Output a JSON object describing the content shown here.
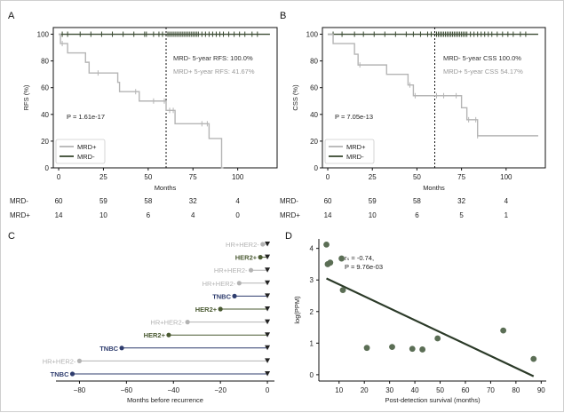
{
  "colors": {
    "mrd_pos": "#b5b5b5",
    "mrd_neg": "#3a4a32",
    "dot": "#5b6e55",
    "line": "#2b3a28",
    "tnbc": "#2f3d6e",
    "her2": "#4a5a32",
    "hr": "#b3b3b3"
  },
  "chart_data": [
    {
      "panel": "A",
      "type": "line",
      "ylabel": "RFS (%)",
      "xlabel": "Months",
      "xticks": [
        0,
        25,
        50,
        75,
        100
      ],
      "yticks": [
        0,
        20,
        40,
        60,
        80,
        100
      ],
      "xlim": [
        -3,
        122
      ],
      "ylim": [
        0,
        105
      ],
      "vline": 60,
      "pvalue": "P = 1.61e-17",
      "annotations": [
        "MRD- 5-year RFS: 100.0%",
        "MRD+ 5-year RFS: 41.67%"
      ],
      "legend": [
        "MRD+",
        "MRD-"
      ],
      "series": [
        {
          "name": "MRD-",
          "steps": [
            [
              0,
              100
            ],
            [
              118,
              100
            ]
          ],
          "censor": [
            2,
            5,
            12,
            18,
            24,
            30,
            36,
            42,
            48,
            49,
            53,
            56,
            58,
            61,
            62,
            63,
            64,
            65,
            66,
            67,
            68,
            69,
            70,
            71,
            72,
            73,
            74,
            75,
            76,
            77,
            78,
            80,
            82,
            84,
            86,
            88,
            90,
            92,
            95,
            98,
            101,
            104,
            108,
            111
          ]
        },
        {
          "name": "MRD+",
          "steps": [
            [
              0,
              100
            ],
            [
              1,
              93
            ],
            [
              5,
              86
            ],
            [
              15,
              79
            ],
            [
              17,
              71
            ],
            [
              33,
              64
            ],
            [
              34,
              57
            ],
            [
              45,
              50
            ],
            [
              60,
              43
            ],
            [
              65,
              33
            ],
            [
              80,
              33
            ],
            [
              84,
              22
            ],
            [
              91,
              22
            ],
            [
              91,
              0
            ],
            [
              92,
              0
            ]
          ],
          "censor": [
            2,
            22,
            43,
            53,
            59,
            62,
            64,
            80,
            83
          ]
        }
      ],
      "risk_table": {
        "xlabels": [
          0,
          25,
          50,
          75,
          100
        ],
        "rows": [
          {
            "name": "MRD-",
            "values": [
              "60",
              "59",
              "58",
              "32",
              "4"
            ]
          },
          {
            "name": "MRD+",
            "values": [
              "14",
              "10",
              "6",
              "4",
              "0"
            ]
          }
        ]
      }
    },
    {
      "panel": "B",
      "type": "line",
      "ylabel": "CSS (%)",
      "xlabel": "Months",
      "xticks": [
        0,
        25,
        50,
        75,
        100
      ],
      "yticks": [
        0,
        20,
        40,
        60,
        80,
        100
      ],
      "xlim": [
        -3,
        122
      ],
      "ylim": [
        0,
        105
      ],
      "vline": 60,
      "pvalue": "P = 7.05e-13",
      "annotations": [
        "MRD- 5-year CSS 100.0%",
        "MRD+ 5-year CSS 54.17%"
      ],
      "legend": [
        "MRD+",
        "MRD-"
      ],
      "series": [
        {
          "name": "MRD-",
          "steps": [
            [
              0,
              100
            ],
            [
              118,
              100
            ]
          ],
          "censor": [
            3,
            8,
            15,
            20,
            26,
            32,
            38,
            44,
            48,
            52,
            56,
            58,
            61,
            62,
            63,
            64,
            65,
            66,
            67,
            68,
            69,
            70,
            71,
            72,
            73,
            74,
            75,
            76,
            77,
            78,
            80,
            82,
            84,
            86,
            88,
            90,
            92,
            95,
            98,
            101,
            104,
            108,
            111
          ]
        },
        {
          "name": "MRD+",
          "steps": [
            [
              0,
              100
            ],
            [
              3,
              93
            ],
            [
              15,
              85
            ],
            [
              17,
              77
            ],
            [
              33,
              70
            ],
            [
              45,
              62
            ],
            [
              48,
              54
            ],
            [
              75,
              45
            ],
            [
              78,
              36
            ],
            [
              84,
              24
            ],
            [
              118,
              24
            ]
          ],
          "censor": [
            18,
            46,
            49,
            61,
            65,
            72,
            79,
            83,
            84
          ]
        }
      ],
      "risk_table": {
        "xlabels": [
          0,
          25,
          50,
          75,
          100
        ],
        "rows": [
          {
            "name": "MRD-",
            "values": [
              "60",
              "59",
              "58",
              "32",
              "4"
            ]
          },
          {
            "name": "MRD+",
            "values": [
              "14",
              "10",
              "6",
              "5",
              "1"
            ]
          }
        ]
      }
    },
    {
      "panel": "C",
      "type": "scatter",
      "xlabel": "Months before recurrence",
      "xticks": [
        -80,
        -60,
        -40,
        -20,
        0
      ],
      "xlim": [
        -90,
        3
      ],
      "rows": [
        {
          "label": "HR+HER2-",
          "subtype": "hr",
          "x": -2
        },
        {
          "label": "HER2+",
          "subtype": "her2",
          "x": -3
        },
        {
          "label": "HR+HER2-",
          "subtype": "hr",
          "x": -7
        },
        {
          "label": "HR+HER2-",
          "subtype": "hr",
          "x": -12
        },
        {
          "label": "TNBC",
          "subtype": "tnbc",
          "x": -14
        },
        {
          "label": "HER2+",
          "subtype": "her2",
          "x": -20
        },
        {
          "label": "HR+HER2-",
          "subtype": "hr",
          "x": -34
        },
        {
          "label": "HER2+",
          "subtype": "her2",
          "x": -42
        },
        {
          "label": "TNBC",
          "subtype": "tnbc",
          "x": -62
        },
        {
          "label": "HR+HER2-",
          "subtype": "hr",
          "x": -80
        },
        {
          "label": "TNBC",
          "subtype": "tnbc",
          "x": -83
        }
      ]
    },
    {
      "panel": "D",
      "type": "scatter",
      "xlabel": "Post-detection survival (months)",
      "ylabel": "log(PPM)",
      "xticks": [
        10,
        20,
        30,
        40,
        50,
        60,
        70,
        80,
        90
      ],
      "yticks": [
        0,
        1,
        2,
        3,
        4
      ],
      "xlim": [
        2,
        92
      ],
      "ylim": [
        -0.2,
        4.3
      ],
      "annotations": [
        "rₛ = -0.74,",
        "P = 9.76e-03"
      ],
      "points": [
        [
          5,
          4.12
        ],
        [
          5.5,
          3.5
        ],
        [
          6.5,
          3.55
        ],
        [
          11,
          3.68
        ],
        [
          11.5,
          2.68
        ],
        [
          21,
          0.85
        ],
        [
          31,
          0.88
        ],
        [
          39,
          0.82
        ],
        [
          43,
          0.8
        ],
        [
          49,
          1.15
        ],
        [
          75,
          1.4
        ],
        [
          87,
          0.5
        ]
      ],
      "fit": [
        [
          5,
          3.05
        ],
        [
          87,
          -0.05
        ]
      ]
    }
  ]
}
